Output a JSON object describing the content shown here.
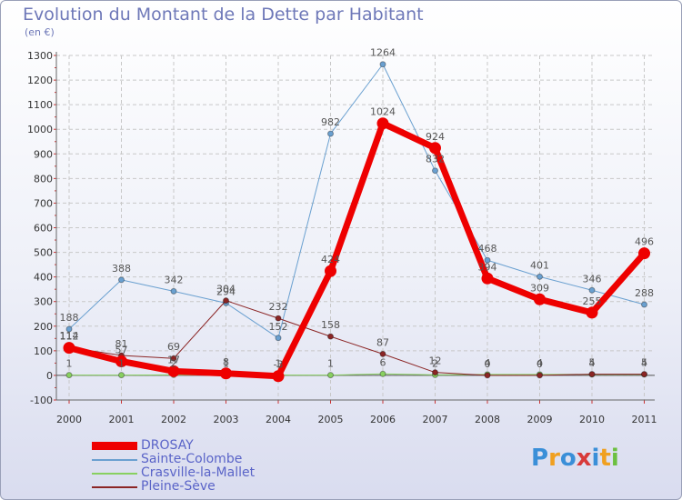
{
  "header": {
    "title": "Evolution du Montant de la Dette par Habitant",
    "subtitle": "(en €)"
  },
  "logo": {
    "letters": [
      "P",
      "r",
      "o",
      "x",
      "i",
      "t",
      "i"
    ],
    "colors": [
      "#3a8fd8",
      "#f0a020",
      "#3a8fd8",
      "#d83a3a",
      "#3a8fd8",
      "#f0a020",
      "#6cc040"
    ]
  },
  "chart_data": {
    "type": "line",
    "title": "Evolution du Montant de la Dette par Habitant",
    "ylabel": "(en €)",
    "xlabel": "",
    "ylim": [
      -100,
      1300
    ],
    "yticks": [
      -100,
      0,
      100,
      200,
      300,
      400,
      500,
      600,
      700,
      800,
      900,
      1000,
      1100,
      1200,
      1300
    ],
    "categories": [
      "2000",
      "2001",
      "2002",
      "2003",
      "2004",
      "2005",
      "2006",
      "2007",
      "2008",
      "2009",
      "2010",
      "2011"
    ],
    "grid": true,
    "legend_position": "bottom-left",
    "series": [
      {
        "name": "DROSAY",
        "color": "#ee0000",
        "width": 7,
        "values": [
          112,
          57,
          17,
          8,
          -3,
          424,
          1024,
          924,
          394,
          309,
          255,
          496
        ],
        "labels": [
          "112",
          "57",
          "17",
          "8",
          "-3",
          "424",
          "1024",
          "924",
          "394",
          "309",
          "255",
          "496"
        ]
      },
      {
        "name": "Sainte-Colombe",
        "color": "#6aa0d0",
        "width": 1,
        "values": [
          188,
          388,
          342,
          294,
          152,
          982,
          1264,
          832,
          468,
          401,
          346,
          288
        ],
        "labels": [
          "188",
          "388",
          "342",
          "294",
          "152",
          "982",
          "1264",
          "832",
          "468",
          "401",
          "346",
          "288"
        ]
      },
      {
        "name": "Crasville-la-Mallet",
        "color": "#88d060",
        "width": 1,
        "values": [
          1,
          1,
          2,
          1,
          1,
          1,
          6,
          2,
          4,
          4,
          4,
          4
        ],
        "labels": [
          "1",
          "1",
          "2",
          "1",
          "1",
          "1",
          "6",
          "2",
          "4",
          "4",
          "4",
          "4"
        ]
      },
      {
        "name": "Pleine-Sève",
        "color": "#8b2525",
        "width": 1,
        "values": [
          114,
          81,
          69,
          304,
          232,
          158,
          87,
          12,
          0,
          0,
          5,
          5
        ],
        "labels": [
          "114",
          "81",
          "69",
          "304",
          "232",
          "158",
          "87",
          "12",
          "0",
          "0",
          "5",
          "5"
        ]
      }
    ]
  }
}
